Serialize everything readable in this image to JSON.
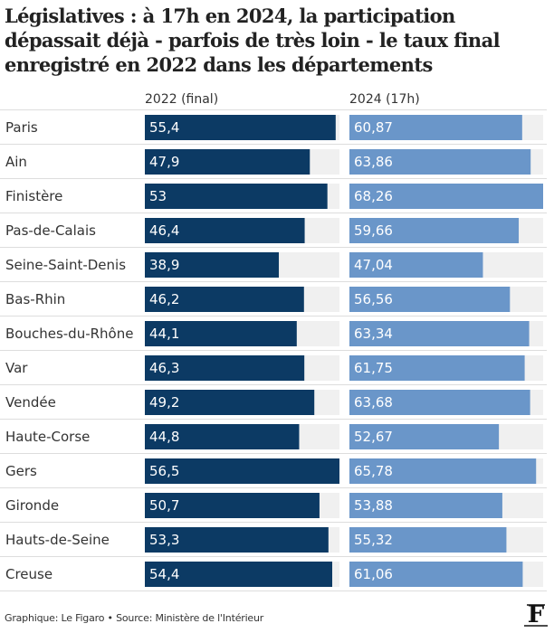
{
  "chart_data": {
    "type": "bar",
    "title": "Législatives : à 17h en 2024, la participation dépassait déjà - parfois de très loin - le taux final enregistré en 2022 dans les départements",
    "categories": [
      "Paris",
      "Ain",
      "Finistère",
      "Pas-de-Calais",
      "Seine-Saint-Denis",
      "Bas-Rhin",
      "Bouches-du-Rhône",
      "Var",
      "Vendée",
      "Haute-Corse",
      "Gers",
      "Gironde",
      "Hauts-de-Seine",
      "Creuse"
    ],
    "series": [
      {
        "name": "2022 (final)",
        "values": [
          55.4,
          47.9,
          53,
          46.4,
          38.9,
          46.2,
          44.1,
          46.3,
          49.2,
          44.8,
          56.5,
          50.7,
          53.3,
          54.4
        ],
        "labels": [
          "55,4",
          "47,9",
          "53",
          "46,4",
          "38,9",
          "46,2",
          "44,1",
          "46,3",
          "49,2",
          "44,8",
          "56,5",
          "50,7",
          "53,3",
          "54,4"
        ],
        "color": "#0c3a64",
        "xlim": [
          0,
          56.5
        ]
      },
      {
        "name": "2024 (17h)",
        "values": [
          60.87,
          63.86,
          68.26,
          59.66,
          47.04,
          56.56,
          63.34,
          61.75,
          63.68,
          52.67,
          65.78,
          53.88,
          55.32,
          61.06
        ],
        "labels": [
          "60,87",
          "63,86",
          "68,26",
          "59,66",
          "47,04",
          "56,56",
          "63,34",
          "61,75",
          "63,68",
          "52,67",
          "65,78",
          "53,88",
          "55,32",
          "61,06"
        ],
        "color": "#6a96c9",
        "xlim": [
          0,
          68.26
        ]
      }
    ],
    "track_color": "#f0f0f0",
    "separator_color": "#dddddd"
  },
  "footer": "Graphique: Le Figaro • Source: Ministère de l'Intérieur",
  "logo_text": "F"
}
